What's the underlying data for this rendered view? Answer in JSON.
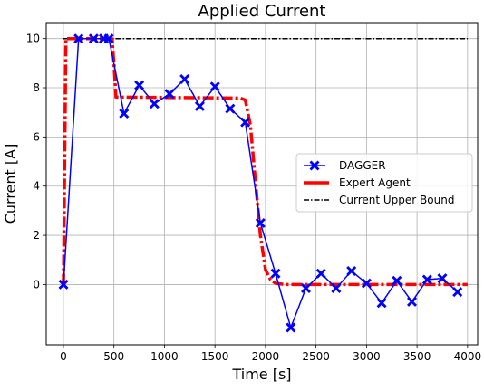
{
  "chart_data": {
    "type": "line",
    "title": "Applied Current",
    "xlabel": "Time [s]",
    "ylabel": "Current [A]",
    "xlim": [
      -170,
      4100
    ],
    "ylim": [
      -2.45,
      10.65
    ],
    "xticks": [
      0,
      500,
      1000,
      1500,
      2000,
      2500,
      3000,
      3500,
      4000
    ],
    "yticks": [
      0,
      2,
      4,
      6,
      8,
      10
    ],
    "grid": true,
    "legend_position": "center-right",
    "series": [
      {
        "name": "DAGGER",
        "style": "line-with-x-markers",
        "color": "#0000ff",
        "x": [
          0,
          150,
          300,
          400,
          450,
          600,
          750,
          900,
          1050,
          1200,
          1350,
          1500,
          1650,
          1800,
          1950,
          2100,
          2250,
          2400,
          2550,
          2700,
          2850,
          3000,
          3150,
          3300,
          3450,
          3600,
          3750,
          3900
        ],
        "y": [
          0,
          10,
          10,
          10,
          10,
          6.95,
          8.1,
          7.35,
          7.75,
          8.35,
          7.25,
          8.05,
          7.15,
          6.6,
          2.5,
          0.45,
          -1.75,
          -0.15,
          0.45,
          -0.15,
          0.55,
          0.05,
          -0.75,
          0.15,
          -0.7,
          0.2,
          0.25,
          -0.3
        ]
      },
      {
        "name": "Expert Agent",
        "style": "dash-dot-thick",
        "color": "#ff0000",
        "x": [
          0,
          25,
          50,
          480,
          500,
          520,
          1750,
          1800,
          1850,
          1900,
          1950,
          2000,
          2050,
          2100,
          2200,
          4000
        ],
        "y": [
          0,
          10,
          10,
          10,
          9,
          7.62,
          7.58,
          7.5,
          6.5,
          4.2,
          2.0,
          0.6,
          0.2,
          0.05,
          0,
          0
        ]
      },
      {
        "name": "Current Upper Bound",
        "style": "dash-dot",
        "color": "#000000",
        "x": [
          0,
          4000
        ],
        "y": [
          10,
          10
        ]
      }
    ]
  }
}
